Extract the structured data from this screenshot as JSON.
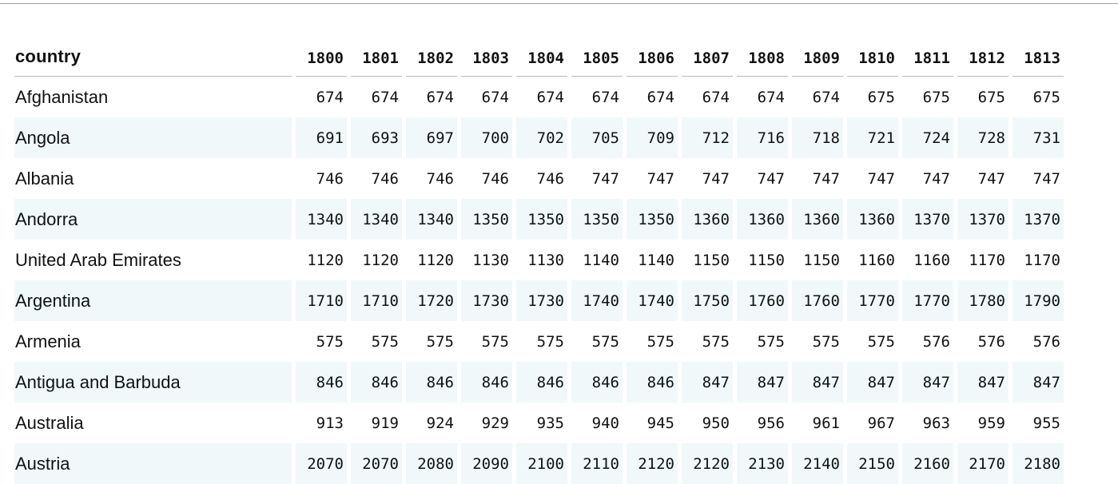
{
  "table": {
    "country_header": "country",
    "years": [
      "1800",
      "1801",
      "1802",
      "1803",
      "1804",
      "1805",
      "1806",
      "1807",
      "1808",
      "1809",
      "1810",
      "1811",
      "1812",
      "1813"
    ],
    "rows": [
      {
        "country": "Afghanistan",
        "values": [
          "674",
          "674",
          "674",
          "674",
          "674",
          "674",
          "674",
          "674",
          "674",
          "674",
          "675",
          "675",
          "675",
          "675"
        ]
      },
      {
        "country": "Angola",
        "values": [
          "691",
          "693",
          "697",
          "700",
          "702",
          "705",
          "709",
          "712",
          "716",
          "718",
          "721",
          "724",
          "728",
          "731"
        ]
      },
      {
        "country": "Albania",
        "values": [
          "746",
          "746",
          "746",
          "746",
          "746",
          "747",
          "747",
          "747",
          "747",
          "747",
          "747",
          "747",
          "747",
          "747"
        ]
      },
      {
        "country": "Andorra",
        "values": [
          "1340",
          "1340",
          "1340",
          "1350",
          "1350",
          "1350",
          "1350",
          "1360",
          "1360",
          "1360",
          "1360",
          "1370",
          "1370",
          "1370"
        ]
      },
      {
        "country": "United Arab Emirates",
        "values": [
          "1120",
          "1120",
          "1120",
          "1130",
          "1130",
          "1140",
          "1140",
          "1150",
          "1150",
          "1150",
          "1160",
          "1160",
          "1170",
          "1170"
        ]
      },
      {
        "country": "Argentina",
        "values": [
          "1710",
          "1710",
          "1720",
          "1730",
          "1730",
          "1740",
          "1740",
          "1750",
          "1760",
          "1760",
          "1770",
          "1770",
          "1780",
          "1790"
        ]
      },
      {
        "country": "Armenia",
        "values": [
          "575",
          "575",
          "575",
          "575",
          "575",
          "575",
          "575",
          "575",
          "575",
          "575",
          "575",
          "576",
          "576",
          "576"
        ]
      },
      {
        "country": "Antigua and Barbuda",
        "values": [
          "846",
          "846",
          "846",
          "846",
          "846",
          "846",
          "846",
          "847",
          "847",
          "847",
          "847",
          "847",
          "847",
          "847"
        ]
      },
      {
        "country": "Australia",
        "values": [
          "913",
          "919",
          "924",
          "929",
          "935",
          "940",
          "945",
          "950",
          "956",
          "961",
          "967",
          "963",
          "959",
          "955"
        ]
      },
      {
        "country": "Austria",
        "values": [
          "2070",
          "2070",
          "2080",
          "2090",
          "2100",
          "2110",
          "2120",
          "2120",
          "2130",
          "2140",
          "2150",
          "2160",
          "2170",
          "2180"
        ]
      }
    ]
  },
  "colors": {
    "stripe": "#f1f8fa",
    "rule": "#b6bcc0",
    "text": "#111111"
  }
}
